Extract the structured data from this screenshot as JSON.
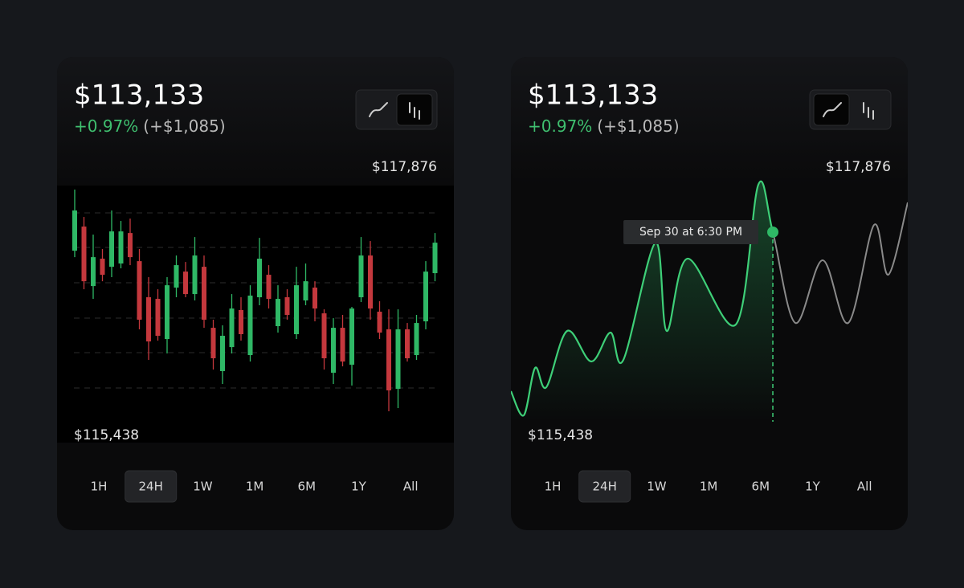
{
  "cards": [
    {
      "price": "$113,133",
      "change_pct": "+0.97%",
      "change_abs": "(+$1,085)",
      "high_label": "$117,876",
      "low_label": "$115,438",
      "timeframes": [
        "1H",
        "24H",
        "1W",
        "1M",
        "6M",
        "1Y",
        "All"
      ],
      "selected_timeframe": "24H",
      "chart_data": {
        "type": "candlestick",
        "up_color": "#2fb866",
        "down_color": "#c4383d",
        "ylim": [
          115438,
          117876
        ],
        "open": [
          117204,
          117469,
          116815,
          117116,
          117027,
          117063,
          117398,
          117089,
          116692,
          116674,
          116233,
          116798,
          116974,
          116727,
          117027,
          116356,
          115880,
          116144,
          116551,
          116056,
          116692,
          116939,
          116374,
          116692,
          116286,
          116657,
          116798,
          116515,
          115862,
          116356,
          115950,
          116692,
          117151,
          116533,
          116339,
          115685,
          116339,
          116056,
          116427,
          116957
        ],
        "high": [
          117876,
          117575,
          117381,
          117222,
          117646,
          117531,
          117557,
          117222,
          116913,
          116780,
          116913,
          117151,
          117080,
          117354,
          117151,
          116445,
          116383,
          116727,
          116692,
          116824,
          117345,
          117045,
          116824,
          116780,
          117027,
          117063,
          116868,
          116559,
          116462,
          116498,
          116586,
          117354,
          117310,
          116648,
          116559,
          116559,
          116409,
          116498,
          117089,
          117398
        ],
        "low": [
          117133,
          116780,
          116674,
          116868,
          116913,
          117010,
          117045,
          116339,
          116003,
          116215,
          116074,
          116692,
          116692,
          116657,
          116356,
          115897,
          115738,
          116074,
          116215,
          115985,
          116604,
          116568,
          116303,
          116445,
          116233,
          116604,
          116427,
          115897,
          115738,
          115932,
          115721,
          116639,
          116445,
          116233,
          115438,
          115473,
          115985,
          116003,
          116339,
          116868
        ],
        "close": [
          117646,
          116868,
          117133,
          116939,
          117416,
          117416,
          117133,
          116445,
          116206,
          116268,
          116824,
          117045,
          116727,
          117151,
          116445,
          116021,
          116268,
          116568,
          116286,
          116710,
          117116,
          116674,
          116674,
          116498,
          116824,
          116868,
          116568,
          116021,
          116356,
          115985,
          116568,
          117151,
          116568,
          116303,
          115668,
          116339,
          116021,
          116409,
          116974,
          117292
        ]
      }
    },
    {
      "price": "$113,133",
      "change_pct": "+0.97%",
      "change_abs": "(+$1,085)",
      "high_label": "$117,876",
      "low_label": "$115,438",
      "timeframes": [
        "1H",
        "24H",
        "1W",
        "1M",
        "6M",
        "1Y",
        "All"
      ],
      "selected_timeframe": "24H",
      "chart_data": {
        "type": "line",
        "color": "#3ecf78",
        "inactive_color": "#8a8a8a",
        "xlim": [
          0,
          24
        ],
        "ylim": [
          115438,
          117876
        ],
        "x": [
          0,
          0.78,
          1.46,
          2.14,
          3.4,
          4.86,
          6.02,
          6.8,
          8.74,
          9.42,
          10.69,
          13.6,
          14.96,
          15.84,
          17.2,
          18.85,
          20.4,
          21.96,
          22.83,
          24
        ],
        "values": [
          115693,
          115438,
          115939,
          115735,
          116330,
          116007,
          116313,
          116024,
          117264,
          116330,
          117095,
          116398,
          117876,
          117375,
          116415,
          117078,
          116415,
          117451,
          116925,
          117689
        ],
        "tooltip": {
          "label": "Sep 30 at 6:30 PM",
          "index": 13
        }
      }
    }
  ]
}
